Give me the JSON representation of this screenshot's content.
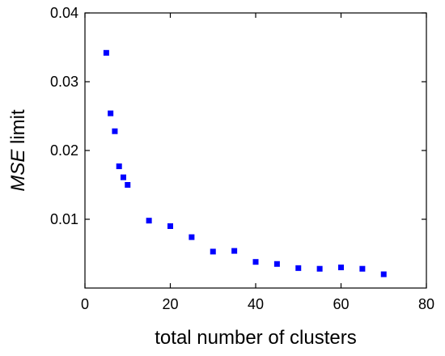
{
  "chart_data": {
    "type": "scatter",
    "xlabel": "total number of clusters",
    "ylabel": {
      "italic": "MSE",
      "rest": " limit"
    },
    "xlim": [
      0,
      80
    ],
    "ylim": [
      0,
      0.04
    ],
    "xticks": [
      0,
      20,
      40,
      60,
      80
    ],
    "xtick_labels": [
      "0",
      "20",
      "40",
      "60",
      "80"
    ],
    "yticks": [
      0.01,
      0.02,
      0.03,
      0.04
    ],
    "ytick_labels": [
      "0.01",
      "0.02",
      "0.03",
      "0.04"
    ],
    "grid": false,
    "marker": "square",
    "color": "#0000ff",
    "series": [
      {
        "x": [
          5,
          6,
          7,
          8,
          9,
          10,
          15,
          20,
          25,
          30,
          35,
          40,
          45,
          50,
          55,
          60,
          65,
          70
        ],
        "y": [
          0.0342,
          0.0254,
          0.0228,
          0.0177,
          0.0161,
          0.015,
          0.0098,
          0.009,
          0.0074,
          0.0053,
          0.0054,
          0.0038,
          0.0035,
          0.0029,
          0.0028,
          0.003,
          0.0028,
          0.002
        ]
      }
    ]
  }
}
